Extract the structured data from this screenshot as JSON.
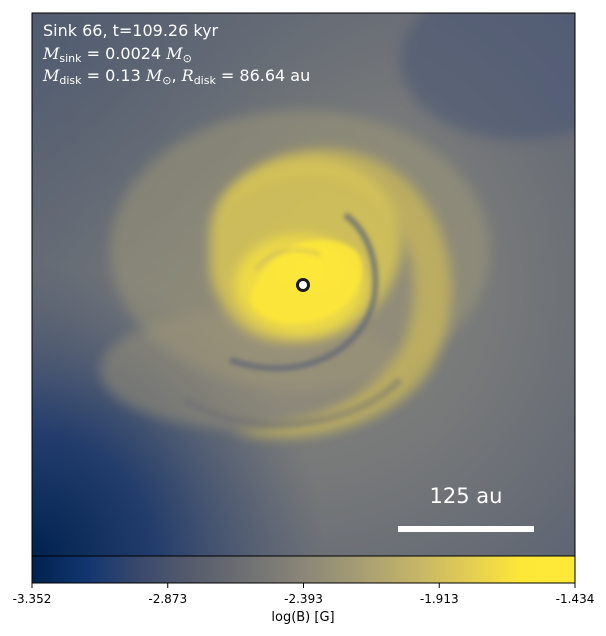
{
  "header": {
    "line1": "Sink 66, t=109.26 kyr",
    "line2_symbol": "M",
    "line2_sub": "sink",
    "line2_value": "= 0.0024",
    "line2_unit_symbol": "M",
    "line2_unit_sub": "⊙",
    "line3_mass_symbol": "M",
    "line3_mass_sub": "disk",
    "line3_mass_value": "= 0.13",
    "line3_mass_unit_symbol": "M",
    "line3_mass_unit_sub": "⊙",
    "line3_sep": ",",
    "line3_radius_symbol": "R",
    "line3_radius_sub": "disk",
    "line3_radius_value": "= 86.64 au"
  },
  "scale_bar": {
    "label": "125 au"
  },
  "colorbar": {
    "label": "log(B) [G]",
    "ticks": [
      "-3.352",
      "-2.873",
      "-2.393",
      "-1.913",
      "-1.434"
    ],
    "colormap": "cividis"
  },
  "colors": {
    "background": "#6f7276",
    "low_field": "#00224e",
    "high_field": "#fee838",
    "sink_marker": "#ffffff"
  }
}
